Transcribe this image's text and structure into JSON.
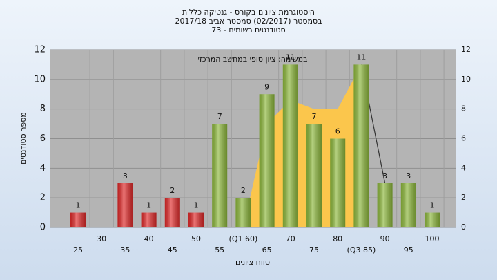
{
  "chart_data": {
    "type": "bar",
    "title": [
      "היסטוגרמת ציונים בקורס - גנטיקה כללית",
      "בסמסטר  (02/2017)  סמסטר אביב 2017/18",
      "סטודנטים רשומים - 73"
    ],
    "annotation": "במשימה: ציון סופי במחשב המרכזי",
    "y_label": "מספר סטודנטים",
    "x_label": "טווח ציונים",
    "categories": [
      "25",
      "30",
      "35",
      "40",
      "45",
      "50",
      "55",
      "(Q1 60)",
      "65",
      "70",
      "75",
      "80",
      "(Q3 85)",
      "90",
      "95",
      "100"
    ],
    "values": [
      1,
      0,
      3,
      1,
      2,
      1,
      7,
      2,
      9,
      11,
      7,
      6,
      11,
      3,
      3,
      1
    ],
    "colors": [
      "#e02a2a",
      "#e02a2a",
      "#e02a2a",
      "#e02a2a",
      "#e02a2a",
      "#e02a2a",
      "#8db83c",
      "#8db83c",
      "#8db83c",
      "#8db83c",
      "#8db83c",
      "#8db83c",
      "#8db83c",
      "#8db83c",
      "#8db83c",
      "#8db83c"
    ],
    "overlays": [
      {
        "type": "area",
        "color": "#fbc64c",
        "values": [
          null,
          null,
          null,
          null,
          null,
          null,
          null,
          0,
          7,
          8.6,
          8,
          8,
          11,
          null,
          null,
          null
        ]
      },
      {
        "type": "line",
        "color": "#333333",
        "values": [
          null,
          null,
          null,
          null,
          null,
          null,
          null,
          null,
          null,
          null,
          null,
          null,
          11,
          3,
          null,
          null
        ]
      }
    ],
    "ylim": [
      0,
      12
    ],
    "yticks": [
      0,
      2,
      4,
      6,
      8,
      10,
      12
    ],
    "grid": true
  }
}
